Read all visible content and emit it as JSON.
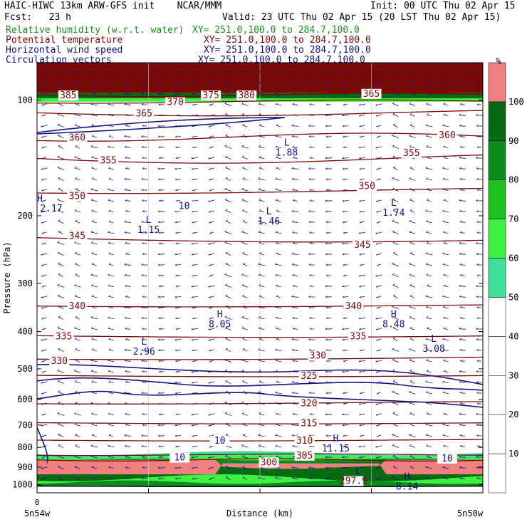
{
  "header": {
    "left_line1": "HAIC-HIWC 13km ARW-GFS init    NCAR/MMM",
    "left_line2": "Fcst:   23 h",
    "right_line1": "Init: 00 UTC Thu 02 Apr 15",
    "right_line2": "Valid: 23 UTC Thu 02 Apr 15 (20 LST Thu 02 Apr 15)",
    "fields": [
      {
        "name": "Relative humidity (w.r.t. water)",
        "xy": "XY= 251.0,100.0 to 284.7,100.0",
        "color": "#1f8a1f"
      },
      {
        "name": "Potential temperature",
        "xy": "XY= 251.0,100.0 to 284.7,100.0",
        "color": "#7a0a0a"
      },
      {
        "name": "Horizontal wind speed",
        "xy": "XY= 251.0,100.0 to 284.7,100.0",
        "color": "#141478"
      },
      {
        "name": "Circulation vectors",
        "xy": "XY= 251.0,100.0 to 284.7,100.0",
        "color": "#141478"
      }
    ]
  },
  "chart_data": {
    "type": "heatmap",
    "xlabel": "Distance (km)",
    "ylabel": "Pressure (hPa)",
    "x_start_label": "0",
    "x_left_label": "5n54w",
    "x_right_label": "5n50w",
    "y_axis": {
      "scale": "log",
      "range": [
        1050,
        80
      ],
      "ticks": [
        100,
        200,
        300,
        400,
        500,
        600,
        700,
        800,
        900,
        1000
      ]
    },
    "colorbar": {
      "unit": "%",
      "levels": [
        10,
        20,
        30,
        40,
        50,
        60,
        70,
        80,
        90,
        100
      ],
      "colors": [
        "#ffffff",
        "#ffffff",
        "#ffffff",
        "#ffffff",
        "#ffffff",
        "#40e098",
        "#40f040",
        "#20c020",
        "#0a8c1e",
        "#086a14",
        "#f08080"
      ]
    },
    "potential_temperature_labels": [
      {
        "text": "385",
        "x": 0.07,
        "p": 97
      },
      {
        "text": "375",
        "x": 0.39,
        "p": 97
      },
      {
        "text": "380",
        "x": 0.47,
        "p": 97
      },
      {
        "text": "365",
        "x": 0.75,
        "p": 96
      },
      {
        "text": "370",
        "x": 0.31,
        "p": 101
      },
      {
        "text": "365",
        "x": 0.24,
        "p": 108
      },
      {
        "text": "360",
        "x": 0.09,
        "p": 125
      },
      {
        "text": "360",
        "x": 0.92,
        "p": 123
      },
      {
        "text": "355",
        "x": 0.16,
        "p": 143
      },
      {
        "text": "355",
        "x": 0.84,
        "p": 137
      },
      {
        "text": "350",
        "x": 0.09,
        "p": 177
      },
      {
        "text": "350",
        "x": 0.74,
        "p": 167
      },
      {
        "text": "345",
        "x": 0.09,
        "p": 225
      },
      {
        "text": "345",
        "x": 0.73,
        "p": 237
      },
      {
        "text": "340",
        "x": 0.09,
        "p": 342
      },
      {
        "text": "340",
        "x": 0.71,
        "p": 342
      },
      {
        "text": "335",
        "x": 0.06,
        "p": 410
      },
      {
        "text": "335",
        "x": 0.72,
        "p": 410
      },
      {
        "text": "330",
        "x": 0.05,
        "p": 475
      },
      {
        "text": "330",
        "x": 0.63,
        "p": 460
      },
      {
        "text": "325",
        "x": 0.61,
        "p": 520
      },
      {
        "text": "320",
        "x": 0.61,
        "p": 612
      },
      {
        "text": "315",
        "x": 0.61,
        "p": 690
      },
      {
        "text": "310",
        "x": 0.6,
        "p": 766
      },
      {
        "text": "305",
        "x": 0.6,
        "p": 837
      },
      {
        "text": "300",
        "x": 0.52,
        "p": 872
      },
      {
        "text": "297.9",
        "x": 0.71,
        "p": 975
      }
    ],
    "wind_speed_labels": [
      {
        "text": "10",
        "x": 0.33,
        "p": 188
      },
      {
        "text": "10",
        "x": 0.41,
        "p": 766
      },
      {
        "text": "10",
        "x": 0.32,
        "p": 847
      },
      {
        "text": "10",
        "x": 0.92,
        "p": 852
      }
    ],
    "extrema": [
      {
        "kind": "H",
        "value": "2.17",
        "x": 0.0,
        "p": 190
      },
      {
        "kind": "L",
        "value": "1.15",
        "x": 0.25,
        "p": 216
      },
      {
        "kind": "L",
        "value": "1.88",
        "x": 0.56,
        "p": 136
      },
      {
        "kind": "L",
        "value": "1.46",
        "x": 0.52,
        "p": 205
      },
      {
        "kind": "L",
        "value": "1.74",
        "x": 0.8,
        "p": 195
      },
      {
        "kind": "H",
        "value": "8.05",
        "x": 0.41,
        "p": 380
      },
      {
        "kind": "H",
        "value": "8.48",
        "x": 0.8,
        "p": 380
      },
      {
        "kind": "L",
        "value": "2.96",
        "x": 0.24,
        "p": 448
      },
      {
        "kind": "L",
        "value": "3.08",
        "x": 0.89,
        "p": 440
      },
      {
        "kind": "H",
        "value": "11.15",
        "x": 0.67,
        "p": 800
      },
      {
        "kind": "L",
        "value": "",
        "x": 0.72,
        "p": 972
      },
      {
        "kind": "H",
        "value": "8.14",
        "x": 0.83,
        "p": 1005
      }
    ]
  }
}
